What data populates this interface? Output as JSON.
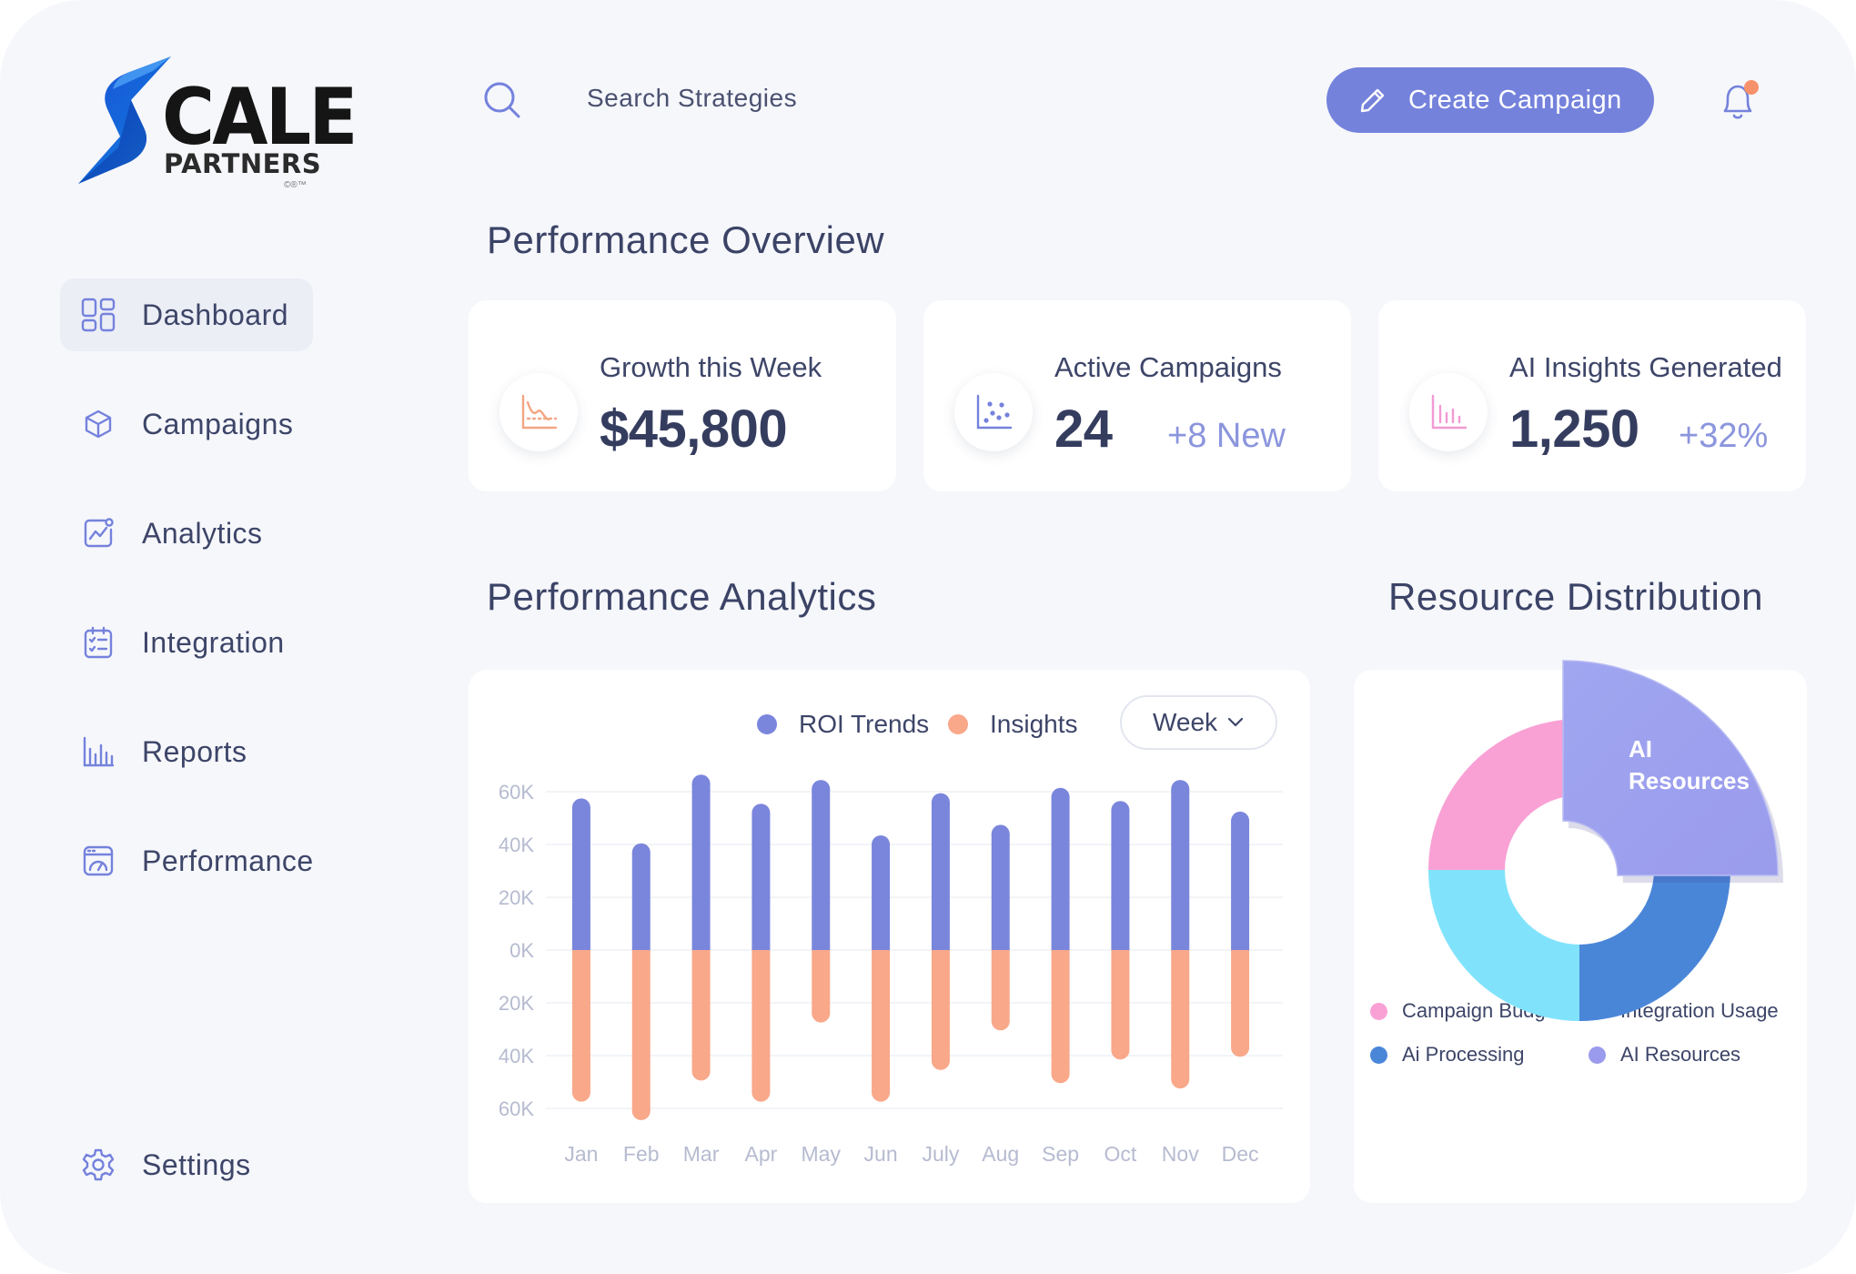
{
  "brand": {
    "name_main": "CALE",
    "name_sub": "PARTNERS",
    "mark": "©®™"
  },
  "sidebar": {
    "items": [
      {
        "label": "Dashboard",
        "icon": "dashboard-grid-icon",
        "active": true
      },
      {
        "label": "Campaigns",
        "icon": "cube-icon"
      },
      {
        "label": "Analytics",
        "icon": "analytics-chart-icon"
      },
      {
        "label": "Integration",
        "icon": "checklist-icon"
      },
      {
        "label": "Reports",
        "icon": "bar-chart-icon"
      },
      {
        "label": "Performance",
        "icon": "speedometer-icon"
      }
    ],
    "settings": {
      "label": "Settings",
      "icon": "gear-icon"
    }
  },
  "topbar": {
    "search_label": "Search Strategies",
    "create_label": "Create Campaign",
    "notification_dot": true
  },
  "overview": {
    "title": "Performance Overview",
    "cards": [
      {
        "title": "Growth this Week",
        "value": "$45,800",
        "delta": "",
        "icon": "trend-line-icon",
        "icon_color": "#f4a582"
      },
      {
        "title": "Active Campaigns",
        "value": "24",
        "delta": "+8 New",
        "icon": "scatter-plot-icon",
        "icon_color": "#7482dc"
      },
      {
        "title": "AI Insights Generated",
        "value": "1,250",
        "delta": "+32%",
        "icon": "bar-chart-icon",
        "icon_color": "#f29ad3"
      }
    ]
  },
  "analytics": {
    "title": "Performance Analytics",
    "period_label": "Week"
  },
  "chart_data": {
    "type": "bar",
    "categories": [
      "Jan",
      "Feb",
      "Mar",
      "Apr",
      "May",
      "Jun",
      "July",
      "Aug",
      "Sep",
      "Oct",
      "Nov",
      "Dec"
    ],
    "series": [
      {
        "name": "ROI Trends",
        "color": "#7a86dc",
        "values": [
          54000,
          37000,
          63000,
          52000,
          61000,
          40000,
          56000,
          44000,
          58000,
          53000,
          61000,
          49000
        ]
      },
      {
        "name": "Insights",
        "color": "#f9a88a",
        "values": [
          -54000,
          -61000,
          -46000,
          -54000,
          -24000,
          -54000,
          -42000,
          -27000,
          -47000,
          -38000,
          -49000,
          -37000
        ]
      }
    ],
    "y_ticks": [
      "60K",
      "40K",
      "20K",
      "0K",
      "20K",
      "40K",
      "60K"
    ],
    "ylim": [
      -60000,
      60000
    ],
    "grid": true,
    "legend": "top"
  },
  "distribution": {
    "title": "Resource Distribution",
    "callout": "AI Resources",
    "segments": [
      {
        "label": "Campaign Budget",
        "color": "#f9a1d5",
        "value": 25
      },
      {
        "label": "Integration Usage",
        "color": "#80e3fb",
        "value": 25
      },
      {
        "label": "Ai Processing",
        "color": "#4a86d8",
        "value": 25
      },
      {
        "label": "AI Resources",
        "color": "#9a9bec",
        "value": 25
      }
    ]
  }
}
